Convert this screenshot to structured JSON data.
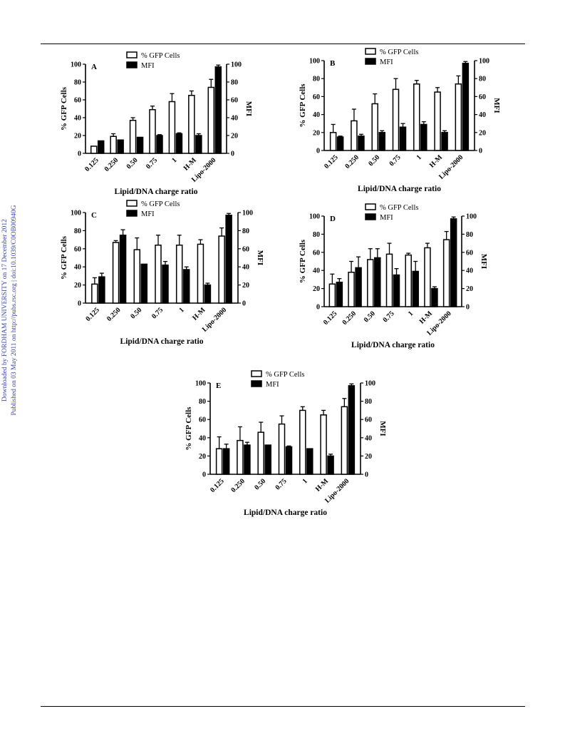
{
  "side_note": {
    "line1": "Downloaded by FORDHAM UNIVERSITY on 17 December 2012",
    "line2": "Published on 03 May 2011 on http://pubs.rsc.org | doi:10.1039/C0OB00940G"
  },
  "colors": {
    "gfp_fill": "#ffffff",
    "mfi_fill": "#000000",
    "axis": "#000000",
    "side_note": "#3b45a8"
  },
  "chart_data": [
    {
      "panel": "A",
      "type": "bar",
      "categories": [
        "0.125",
        "0.250",
        "0.50",
        "0.75",
        "1",
        "H-M",
        "Lipo-2000"
      ],
      "xlabel": "Lipid/DNA charge ratio",
      "ylabel": "% GFP Cells",
      "y2label": "MFI",
      "ylim": [
        0,
        100
      ],
      "y2lim": [
        0,
        100
      ],
      "yticks": [
        0,
        20,
        40,
        60,
        80,
        100
      ],
      "legend_position": "top-center",
      "series": [
        {
          "name": "% GFP Cells",
          "values": [
            8,
            19,
            37,
            49,
            58,
            65,
            74
          ],
          "errors": [
            0,
            3,
            3,
            4,
            9,
            5,
            9
          ]
        },
        {
          "name": "MFI",
          "values": [
            14,
            15,
            18,
            20,
            22,
            20,
            97
          ],
          "errors": [
            0,
            0,
            0,
            1,
            1,
            2,
            2
          ]
        }
      ]
    },
    {
      "panel": "B",
      "type": "bar",
      "categories": [
        "0.125",
        "0.250",
        "0.50",
        "0.75",
        "1",
        "H-M",
        "Lipo-2000"
      ],
      "xlabel": "Lipid/DNA charge ratio",
      "ylabel": "% GFP Cells",
      "y2label": "MFI",
      "ylim": [
        0,
        100
      ],
      "y2lim": [
        0,
        100
      ],
      "yticks": [
        0,
        20,
        40,
        60,
        80,
        100
      ],
      "legend_position": "top-center",
      "series": [
        {
          "name": "% GFP Cells",
          "values": [
            20,
            33,
            52,
            68,
            74,
            65,
            74
          ],
          "errors": [
            9,
            13,
            11,
            12,
            4,
            5,
            9
          ]
        },
        {
          "name": "MFI",
          "values": [
            15,
            16,
            20,
            26,
            29,
            20,
            97
          ],
          "errors": [
            1,
            2,
            2,
            4,
            3,
            2,
            2
          ]
        }
      ]
    },
    {
      "panel": "C",
      "type": "bar",
      "categories": [
        "0.125",
        "0.250",
        "0.50",
        "0.75",
        "1",
        "H-M",
        "Lipo-2000"
      ],
      "xlabel": "Lipid/DNA charge ratio",
      "ylabel": "% GFP Cells",
      "y2label": "MFI",
      "ylim": [
        0,
        100
      ],
      "y2lim": [
        0,
        100
      ],
      "yticks": [
        0,
        20,
        40,
        60,
        80,
        100
      ],
      "legend_position": "top-center",
      "series": [
        {
          "name": "% GFP Cells",
          "values": [
            21,
            67,
            59,
            64,
            64,
            65,
            74
          ],
          "errors": [
            7,
            2,
            13,
            11,
            11,
            5,
            9
          ]
        },
        {
          "name": "MFI",
          "values": [
            29,
            75,
            43,
            42,
            37,
            20,
            97
          ],
          "errors": [
            4,
            6,
            0,
            4,
            3,
            2,
            2
          ]
        }
      ]
    },
    {
      "panel": "D",
      "type": "bar",
      "categories": [
        "0.125",
        "0.250",
        "0.50",
        "0.75",
        "1",
        "H-M",
        "Lipo-2000"
      ],
      "xlabel": "Lipid/DNA charge ratio",
      "ylabel": "% GFP Cells",
      "y2label": "MFI",
      "ylim": [
        0,
        100
      ],
      "y2lim": [
        0,
        100
      ],
      "yticks": [
        0,
        20,
        40,
        60,
        80,
        100
      ],
      "legend_position": "top-center",
      "series": [
        {
          "name": "% GFP Cells",
          "values": [
            25,
            38,
            52,
            58,
            57,
            65,
            74
          ],
          "errors": [
            11,
            12,
            12,
            12,
            2,
            5,
            9
          ]
        },
        {
          "name": "MFI",
          "values": [
            27,
            43,
            54,
            35,
            39,
            20,
            97
          ],
          "errors": [
            4,
            12,
            10,
            7,
            11,
            2,
            2
          ]
        }
      ]
    },
    {
      "panel": "E",
      "type": "bar",
      "categories": [
        "0.125",
        "0.250",
        "0.50",
        "0.75",
        "1",
        "H-M",
        "Lipo-2000"
      ],
      "xlabel": "Lipid/DNA charge ratio",
      "ylabel": "% GFP Cells",
      "y2label": "MFI",
      "ylim": [
        0,
        100
      ],
      "y2lim": [
        0,
        100
      ],
      "yticks": [
        0,
        20,
        40,
        60,
        80,
        100
      ],
      "legend_position": "top-center",
      "series": [
        {
          "name": "% GFP Cells",
          "values": [
            28,
            37,
            46,
            55,
            70,
            65,
            74
          ],
          "errors": [
            13,
            15,
            11,
            9,
            4,
            5,
            9
          ]
        },
        {
          "name": "MFI",
          "values": [
            28,
            32,
            32,
            30,
            28,
            20,
            97
          ],
          "errors": [
            5,
            3,
            0,
            1,
            0,
            2,
            2
          ]
        }
      ]
    }
  ]
}
